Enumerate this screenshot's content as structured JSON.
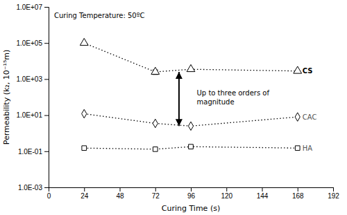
{
  "chart_data": {
    "type": "line",
    "title": "Curing Temperature: 50ºC",
    "x_label": "Curing Time (s)",
    "y_label": "Permeability (k₂, 10⁻¹⁵m)",
    "log": "y",
    "grid": false,
    "xlim": [
      0,
      192
    ],
    "xticks": [
      0,
      24,
      48,
      72,
      96,
      120,
      144,
      168,
      192
    ],
    "ylim": [
      0.001,
      10000000.0
    ],
    "yticks": [
      {
        "value": 0.001,
        "label": "1.0E-03"
      },
      {
        "value": 0.1,
        "label": "1.0E-01"
      },
      {
        "value": 10.0,
        "label": "1.0E+01"
      },
      {
        "value": 1000.0,
        "label": "1.0E+03"
      },
      {
        "value": 100000.0,
        "label": "1.0E+05"
      },
      {
        "value": 10000000.0,
        "label": "1.0E+07"
      }
    ],
    "x": [
      24,
      72,
      96,
      168
    ],
    "series": [
      {
        "name": "CS",
        "color": "black",
        "marker": "triangle",
        "line_style": "dotted",
        "values": [
          100000.0,
          2500,
          3500,
          2800
        ],
        "error": [
          0,
          700,
          0,
          0
        ]
      },
      {
        "name": "CAC",
        "color": "black",
        "marker": "diamond",
        "line_style": "dotted",
        "values": [
          12,
          3.5,
          2.5,
          8
        ]
      },
      {
        "name": "HA",
        "color": "black",
        "marker": "square",
        "line_style": "dotted",
        "values": [
          0.15,
          0.13,
          0.18,
          0.15
        ]
      }
    ],
    "arrows": [
      {
        "x": 88,
        "y": [
          2500,
          2.5
        ]
      }
    ],
    "annotations": [
      {
        "text": "Up to three orders of\nmagnitude",
        "x": 100,
        "y": 100
      }
    ]
  }
}
